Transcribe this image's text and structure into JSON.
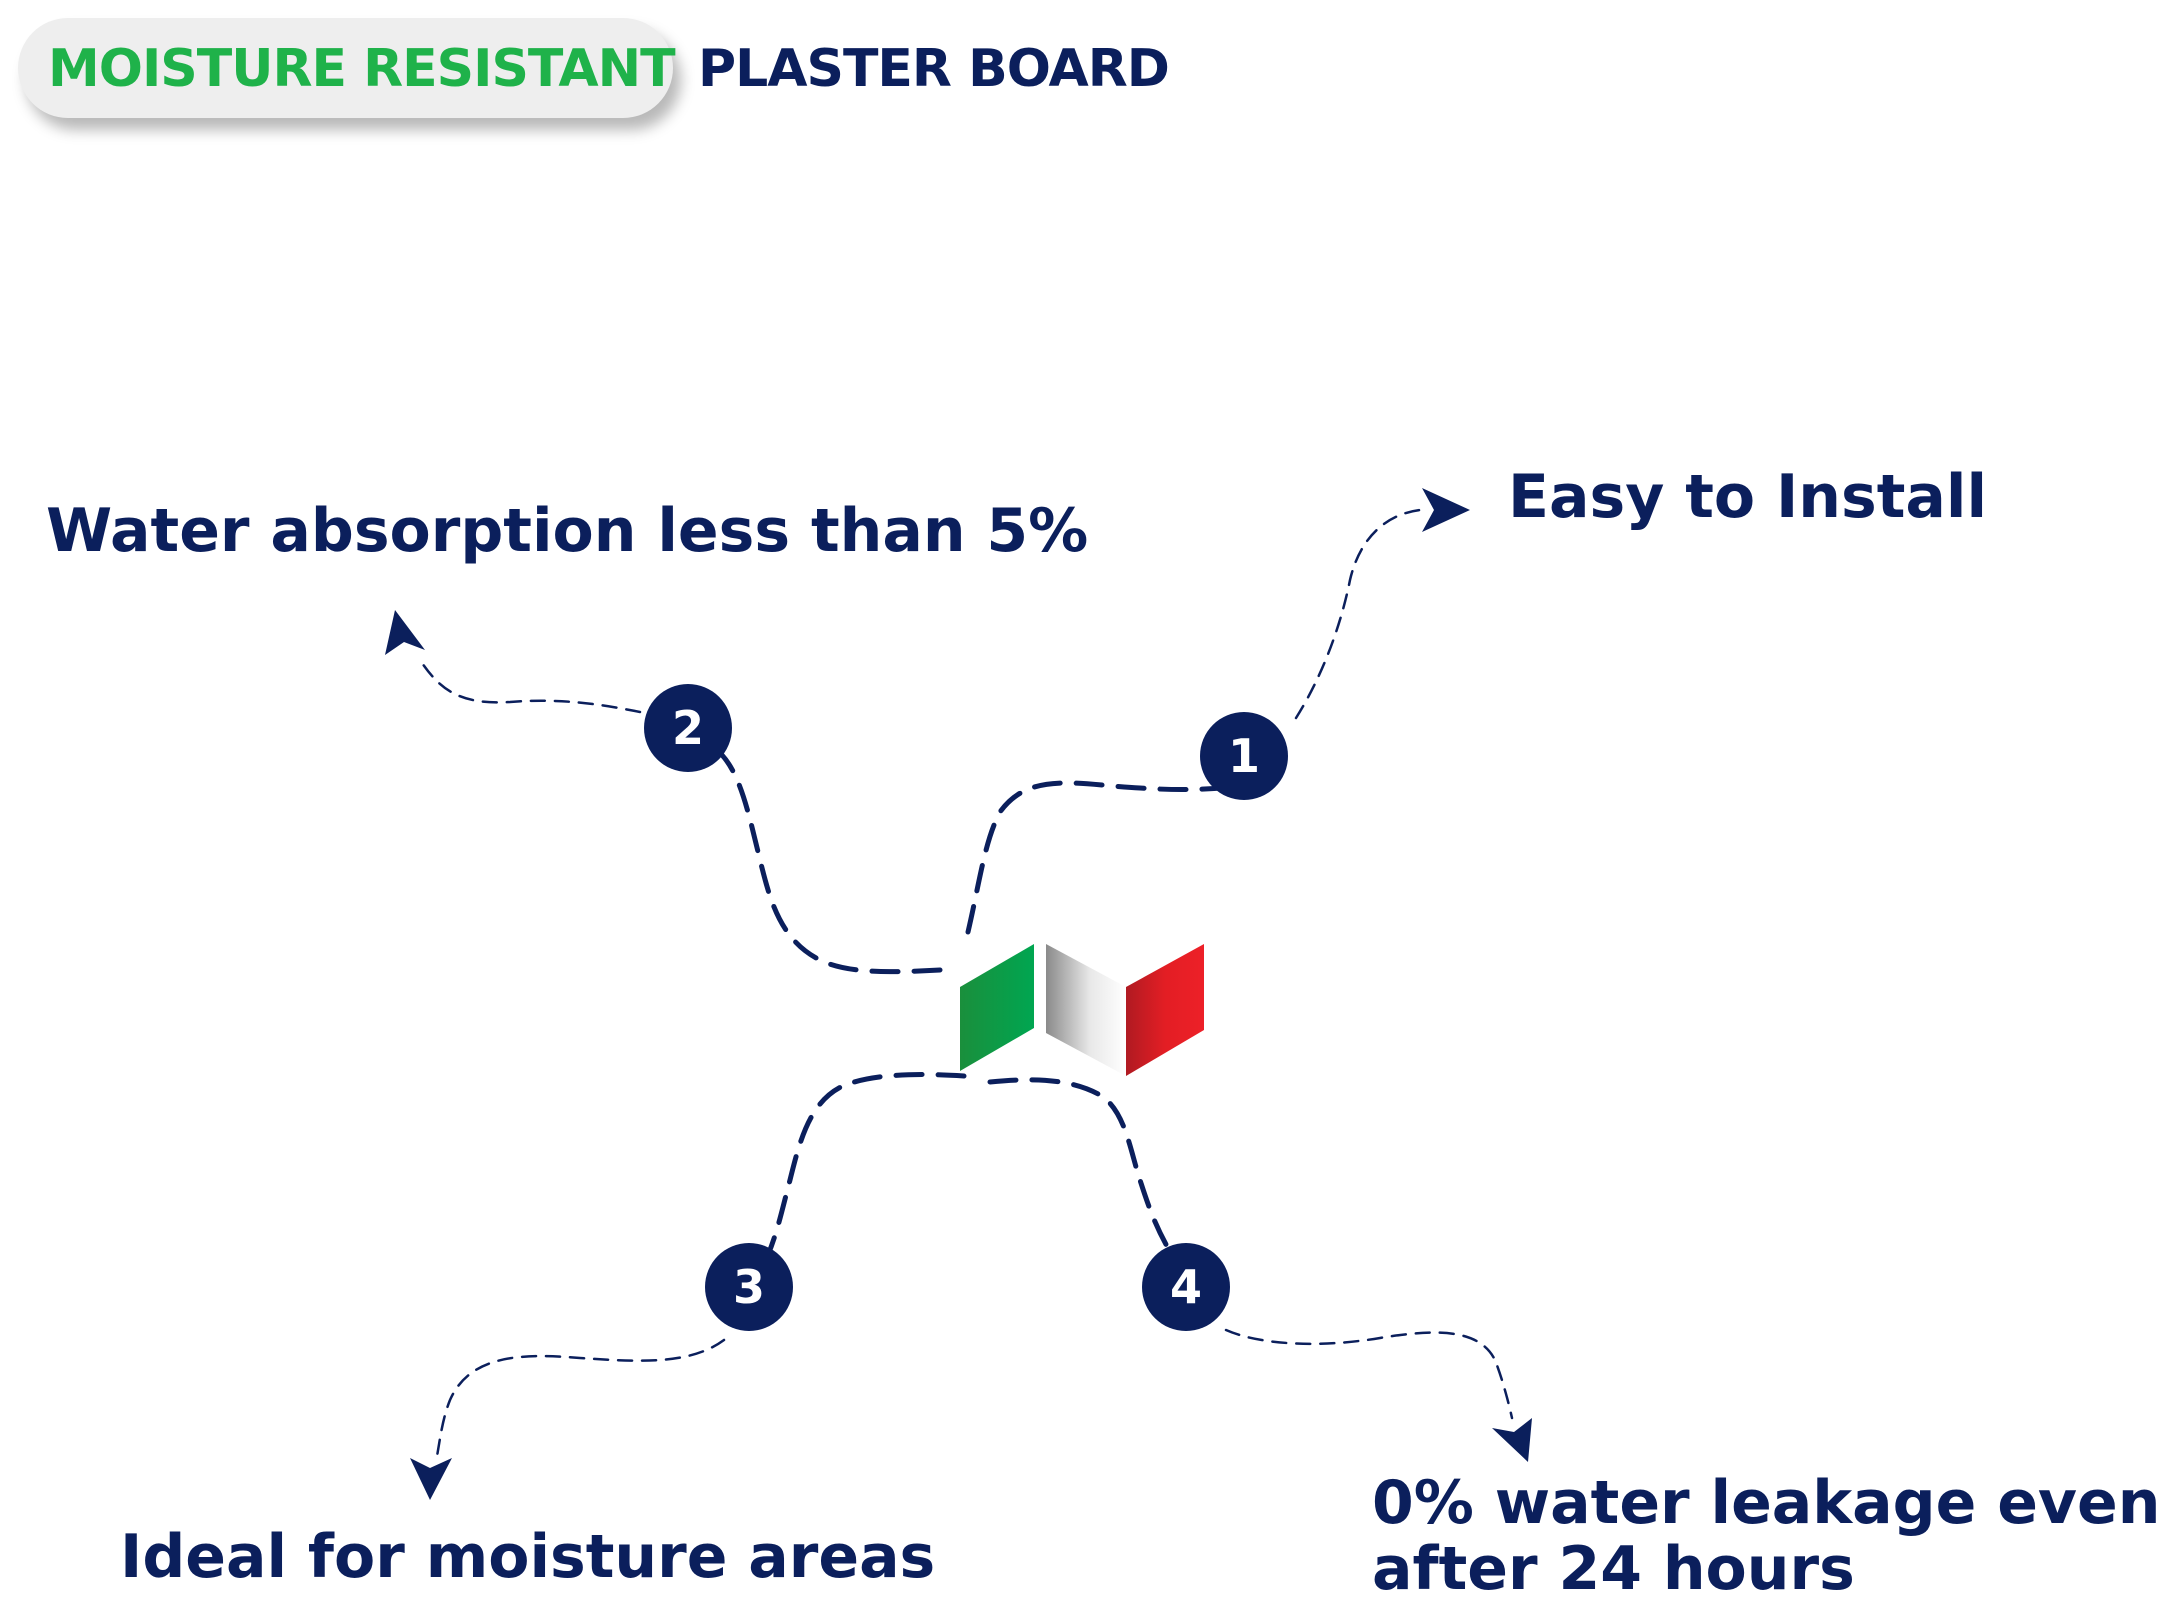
{
  "header": {
    "highlight": "MOISTURE RESISTANT",
    "title": "PLASTER BOARD"
  },
  "colors": {
    "navy": "#0b1f5c",
    "green": "#1fb24a",
    "flag_green": "#009a44",
    "flag_white": "#e8e8e8",
    "flag_red": "#e31e24",
    "pill_bg": "#eeeeee"
  },
  "features": [
    {
      "number": "1",
      "label": "Easy to Install"
    },
    {
      "number": "2",
      "label": "Water absorption less than 5%"
    },
    {
      "number": "3",
      "label": "Ideal for moisture areas"
    },
    {
      "number": "4",
      "label_line1": "0% water leakage even",
      "label_line2": "after 24 hours"
    }
  ],
  "center_icon": "italian-flag-icon"
}
